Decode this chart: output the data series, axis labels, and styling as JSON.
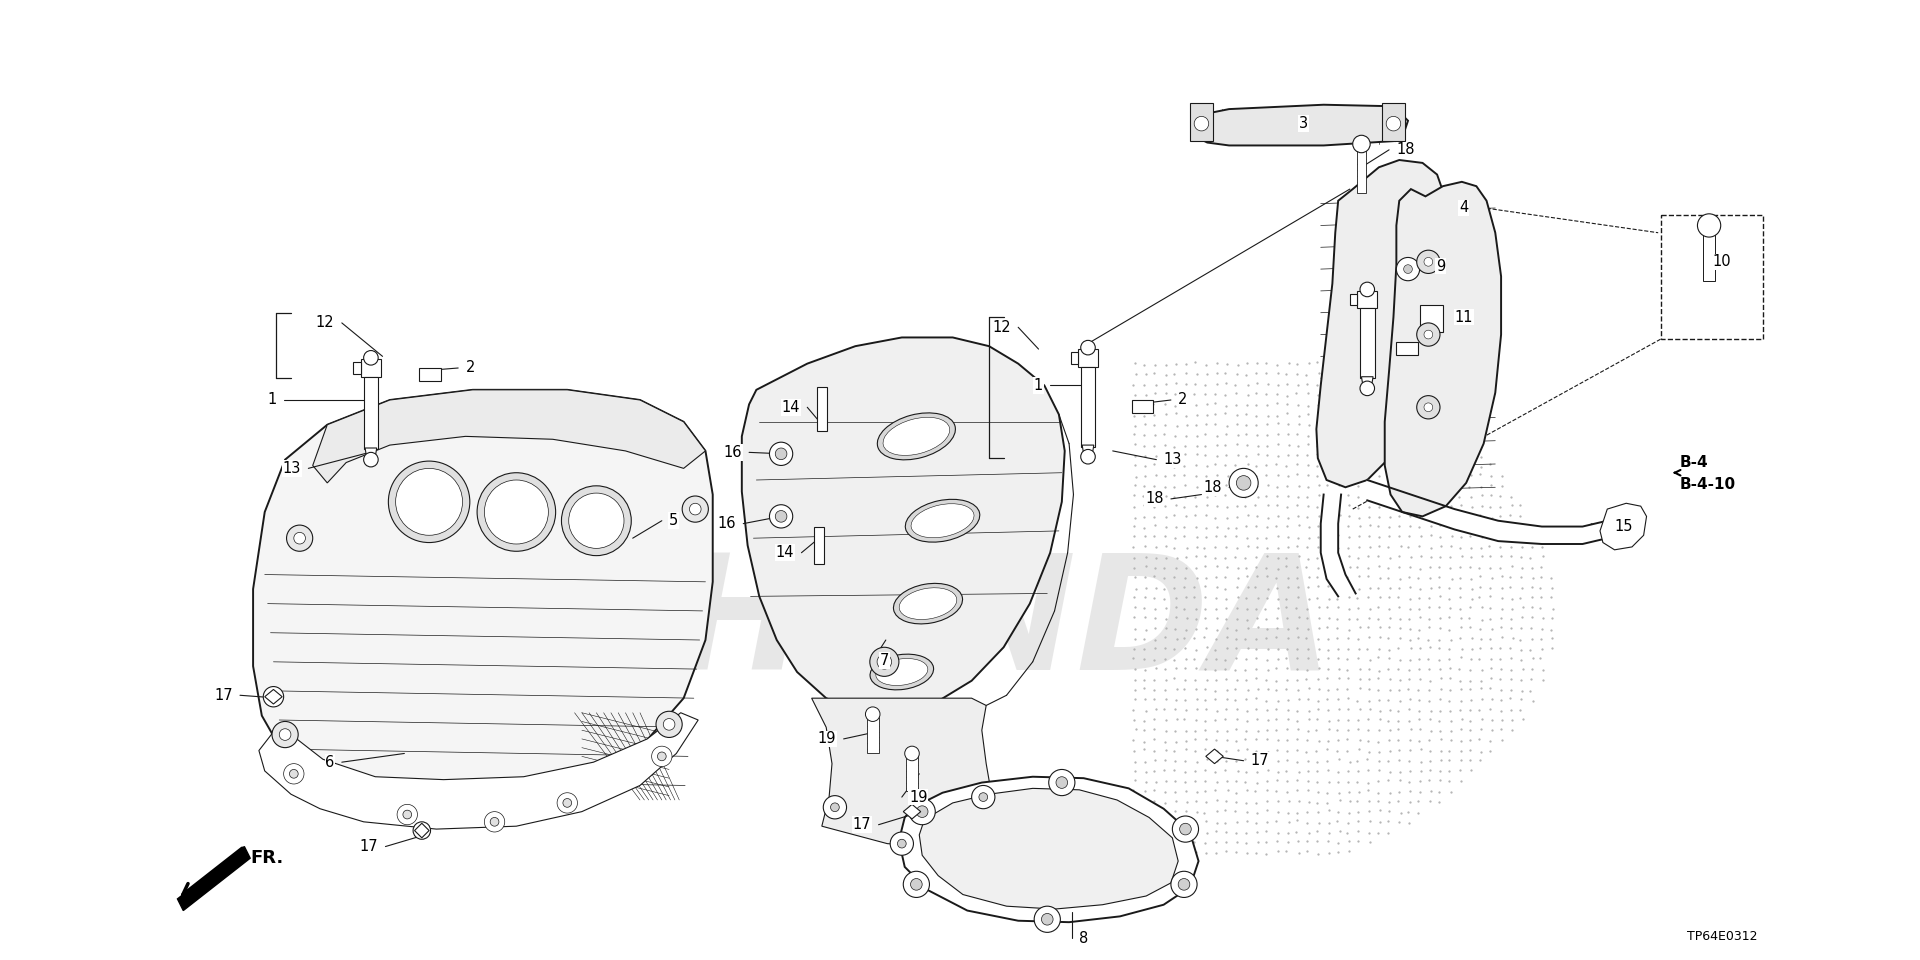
{
  "bg_color": "#ffffff",
  "line_color": "#1a1a1a",
  "ref_code": "TP64E0312",
  "b4_label": "B-4",
  "b4_10_label": "B-4-10",
  "fr_label": "FR.",
  "watermark": "HONDA",
  "dot_color": "#cccccc",
  "part_label_fontsize": 10.5,
  "lw_thick": 2.0,
  "lw_med": 1.4,
  "lw_thin": 0.8,
  "lw_xtra": 0.5,
  "labels": [
    [
      "12",
      163,
      245,
      135,
      222,
      "r"
    ],
    [
      "2",
      190,
      255,
      215,
      253,
      "l"
    ],
    [
      "1",
      158,
      275,
      95,
      275,
      "r"
    ],
    [
      "13",
      158,
      310,
      112,
      322,
      "r"
    ],
    [
      "5",
      335,
      370,
      355,
      358,
      "l"
    ],
    [
      "6",
      178,
      518,
      135,
      524,
      "r"
    ],
    [
      "17",
      92,
      480,
      65,
      478,
      "r"
    ],
    [
      "17",
      192,
      574,
      165,
      582,
      "r"
    ],
    [
      "16",
      438,
      312,
      415,
      311,
      "r"
    ],
    [
      "16",
      437,
      355,
      411,
      360,
      "r"
    ],
    [
      "14",
      466,
      293,
      455,
      280,
      "r"
    ],
    [
      "14",
      463,
      370,
      451,
      380,
      "r"
    ],
    [
      "7",
      509,
      440,
      500,
      454,
      "l"
    ],
    [
      "19",
      503,
      503,
      480,
      508,
      "r"
    ],
    [
      "19",
      532,
      532,
      520,
      548,
      "l"
    ],
    [
      "12",
      614,
      240,
      600,
      225,
      "r"
    ],
    [
      "1",
      653,
      265,
      622,
      265,
      "r"
    ],
    [
      "2",
      680,
      278,
      705,
      275,
      "l"
    ],
    [
      "13",
      665,
      310,
      695,
      316,
      "l"
    ],
    [
      "18",
      726,
      340,
      705,
      343,
      "r"
    ],
    [
      "17",
      527,
      560,
      504,
      567,
      "r"
    ],
    [
      "17",
      735,
      520,
      755,
      523,
      "l"
    ],
    [
      "8",
      637,
      627,
      637,
      645,
      "l"
    ],
    [
      "3",
      778,
      100,
      788,
      85,
      "l"
    ],
    [
      "18",
      836,
      115,
      855,
      103,
      "l"
    ],
    [
      "4",
      885,
      155,
      898,
      143,
      "l"
    ],
    [
      "9",
      870,
      185,
      882,
      183,
      "l"
    ],
    [
      "11",
      882,
      218,
      895,
      218,
      "l"
    ],
    [
      "18",
      758,
      332,
      745,
      335,
      "r"
    ],
    [
      "15",
      994,
      360,
      1005,
      362,
      "l"
    ],
    [
      "10",
      1065,
      192,
      1072,
      180,
      "l"
    ]
  ],
  "bracket_groups": [
    [
      90,
      215,
      260,
      true
    ],
    [
      580,
      218,
      315,
      true
    ]
  ]
}
